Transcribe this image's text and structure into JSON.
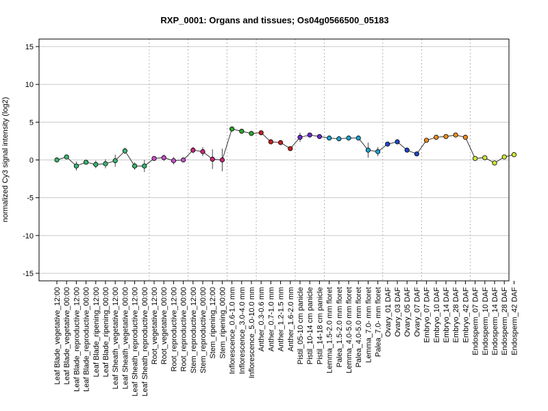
{
  "chart_data": {
    "type": "line",
    "title": "RXP_0001: Organs and tissues; Os04g0566500_05183",
    "ylabel": "normalized Cy3 signal intensity (log2)",
    "xlabel": "",
    "ylim": [
      -16,
      16
    ],
    "yticks": [
      -15,
      -10,
      -5,
      0,
      5,
      10,
      15
    ],
    "grid": true,
    "categories": [
      "Leaf Blade_vegetative_12:00",
      "Leaf Blade_vegetative_00:00",
      "Leaf Blade_reproductive_12:00",
      "Leaf Blade_reproductive_00:00",
      "Leaf Blade_ripening_12:00",
      "Leaf Blade_ripening_00:00",
      "Leaf Sheath_vegetative_12:00",
      "Leaf Sheath_vegetative_00:00",
      "Leaf Sheath_reproductive_12:00",
      "Leaf Sheath_reproductive_00:00",
      "Root_vegetative_12:00",
      "Root_vegetative_00:00",
      "Root_reproductive_12:00",
      "Root_reproductive_00:00",
      "Stem_reproductive_12:00",
      "Stem_reproductive_00:00",
      "Stem_ripening_12:00",
      "Stem_ripening_00:00",
      "Inflorescence_0.6-1.0 mm",
      "Inflorescence_3.0-4.0 mm",
      "Inflorescence_5.0-10.0 mm",
      "Anther_0.3-0.6 mm",
      "Anther_0.7-1.0 mm",
      "Anther_1.2-1.5 mm",
      "Anther_1.6-2.0 mm",
      "Pistil_05-10 cm panicle",
      "Pistil_10-14 cm panicle",
      "Pistil_14-18 cm panicle",
      "Lemma_1.5-2.0 mm floret",
      "Palea_1.5-2.0 mm floret",
      "Lemma_4.0-5.0 mm floret",
      "Palea_4.0-5.0 mm floret",
      "Lemma_7.0- mm floret",
      "Palea_7.0- mm floret",
      "Ovary_01 DAF",
      "Ovary_03 DAF",
      "Ovary_05 DAF",
      "Ovary_07 DAF",
      "Embryo_07 DAF",
      "Embryo_10 DAF",
      "Embryo_14 DAF",
      "Embryo_28 DAF",
      "Embryo_42 DAF",
      "Endosperm_07 DAF",
      "Endosperm_10 DAF",
      "Endosperm_14 DAF",
      "Endosperm_28 DAF",
      "Endosperm_42 DAF"
    ],
    "values": [
      0.0,
      0.4,
      -0.8,
      -0.3,
      -0.6,
      -0.5,
      -0.1,
      1.2,
      -0.8,
      -0.8,
      0.2,
      0.3,
      -0.1,
      0.0,
      1.3,
      1.1,
      0.1,
      0.0,
      4.1,
      3.8,
      3.5,
      3.6,
      2.4,
      2.3,
      1.5,
      3.0,
      3.3,
      3.1,
      2.9,
      2.8,
      2.9,
      2.9,
      1.3,
      1.1,
      2.1,
      2.4,
      1.3,
      0.8,
      2.6,
      3.0,
      3.1,
      3.3,
      3.0,
      0.2,
      0.3,
      -0.4,
      0.4,
      0.7
    ],
    "errors": [
      0.1,
      0.2,
      0.6,
      0.3,
      0.5,
      0.6,
      0.8,
      0.4,
      0.5,
      0.8,
      0.2,
      0.4,
      0.5,
      0.2,
      0.4,
      0.6,
      1.3,
      1.5,
      0.2,
      0.2,
      0.2,
      0.2,
      0.1,
      0.2,
      0.2,
      0.6,
      0.3,
      0.3,
      0.1,
      0.1,
      0.1,
      0.1,
      1.0,
      0.6,
      0.2,
      0.2,
      0.2,
      0.2,
      0.2,
      0.2,
      0.2,
      0.1,
      0.1,
      0.1,
      0.2,
      0.2,
      0.1,
      0.1
    ],
    "colors": [
      "#3cb371",
      "#3cb371",
      "#3cb371",
      "#3cb371",
      "#3cb371",
      "#3cb371",
      "#3cb371",
      "#3cb371",
      "#3cb371",
      "#3cb371",
      "#c850c8",
      "#c850c8",
      "#c850c8",
      "#c850c8",
      "#c8287a",
      "#c8287a",
      "#c8287a",
      "#c8287a",
      "#2ea52e",
      "#2ea52e",
      "#2ea52e",
      "#c81e1e",
      "#c81e1e",
      "#c81e1e",
      "#c81e1e",
      "#6a2cc8",
      "#6a2cc8",
      "#6a2cc8",
      "#1ea0d2",
      "#1ea0d2",
      "#1ea0d2",
      "#1ea0d2",
      "#1ea0d2",
      "#1ea0d2",
      "#1e46c8",
      "#1e46c8",
      "#1e46c8",
      "#1e46c8",
      "#f08c1e",
      "#f08c1e",
      "#f08c1e",
      "#f08c1e",
      "#f08c1e",
      "#d2e632",
      "#d2e632",
      "#d2e632",
      "#d2e632",
      "#d2e632"
    ],
    "group_separators_after": [
      9,
      13,
      17,
      20,
      24,
      27,
      33,
      37,
      42
    ]
  }
}
